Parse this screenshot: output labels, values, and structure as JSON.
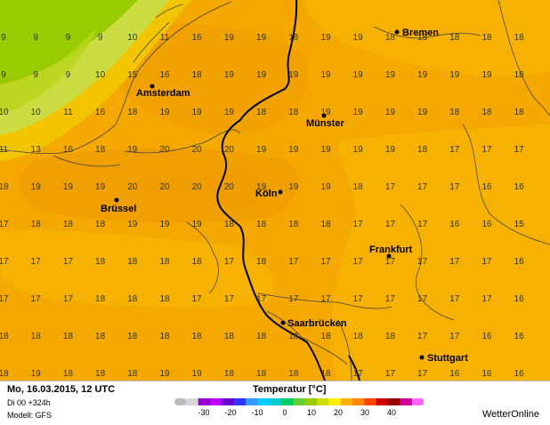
{
  "map": {
    "cities": [
      {
        "name": "Bremen"
      },
      {
        "name": "Amsterdam"
      },
      {
        "name": "Münster"
      },
      {
        "name": "Köln"
      },
      {
        "name": "Brüssel"
      },
      {
        "name": "Frankfurt"
      },
      {
        "name": "Saarbrücken"
      },
      {
        "name": "Stuttgart"
      }
    ],
    "temperature_grid": [
      [
        9,
        9,
        9,
        9,
        10,
        11,
        16,
        19,
        19,
        18,
        19,
        19,
        18,
        18,
        18,
        18,
        18
      ],
      [
        9,
        9,
        9,
        10,
        15,
        16,
        18,
        19,
        19,
        19,
        19,
        19,
        19,
        19,
        19,
        19,
        18
      ],
      [
        10,
        10,
        11,
        16,
        18,
        19,
        19,
        19,
        18,
        18,
        19,
        19,
        19,
        19,
        18,
        18,
        18
      ],
      [
        11,
        13,
        16,
        18,
        19,
        20,
        20,
        20,
        19,
        19,
        19,
        19,
        19,
        18,
        17,
        17,
        17
      ],
      [
        18,
        19,
        19,
        19,
        20,
        20,
        20,
        20,
        19,
        19,
        19,
        18,
        17,
        17,
        17,
        16,
        16
      ],
      [
        17,
        18,
        18,
        18,
        19,
        19,
        19,
        18,
        18,
        18,
        18,
        17,
        17,
        17,
        16,
        16,
        15
      ],
      [
        17,
        17,
        17,
        18,
        18,
        18,
        18,
        17,
        18,
        17,
        17,
        17,
        17,
        17,
        17,
        17,
        16
      ],
      [
        17,
        17,
        17,
        18,
        18,
        18,
        17,
        17,
        17,
        17,
        17,
        17,
        17,
        17,
        17,
        17,
        16
      ],
      [
        18,
        18,
        18,
        18,
        18,
        18,
        18,
        18,
        18,
        18,
        18,
        18,
        18,
        17,
        17,
        16,
        16
      ],
      [
        18,
        19,
        18,
        18,
        18,
        19,
        19,
        18,
        18,
        18,
        18,
        17,
        17,
        17,
        16,
        16,
        16
      ],
      [
        17,
        17,
        17,
        17,
        17,
        17,
        17,
        17,
        17,
        17,
        17,
        17,
        17,
        17,
        17,
        17,
        17
      ]
    ],
    "colors": {
      "green": "#99cc00",
      "light_green": "#ccdd44",
      "yellow": "#f2c500",
      "orange_light": "#f7b100",
      "orange": "#f5a800",
      "orange_dark": "#eb9300",
      "grid_text": "#333333",
      "water_line": "#444444"
    }
  },
  "footer": {
    "date": "Mo, 16.03.2015, 12 UTC",
    "run": "Di 00 +324h",
    "model": "Modell: GFS",
    "legend_title": "Temperatur [°C]",
    "legend_ticks": [
      "-30",
      "-20",
      "-10",
      "0",
      "10",
      "20",
      "30",
      "40"
    ],
    "legend_colors": [
      "#bbbbbb",
      "#d8d8d8",
      "#9900cc",
      "#bb00ff",
      "#6600cc",
      "#3333ff",
      "#3399ff",
      "#00ccff",
      "#00cccc",
      "#00cc66",
      "#66cc33",
      "#99cc00",
      "#ccdd00",
      "#ffee00",
      "#f7b100",
      "#ff8800",
      "#ff4400",
      "#cc0000",
      "#990000",
      "#cc0099",
      "#ff66ff"
    ],
    "brand": "WetterOnline"
  }
}
